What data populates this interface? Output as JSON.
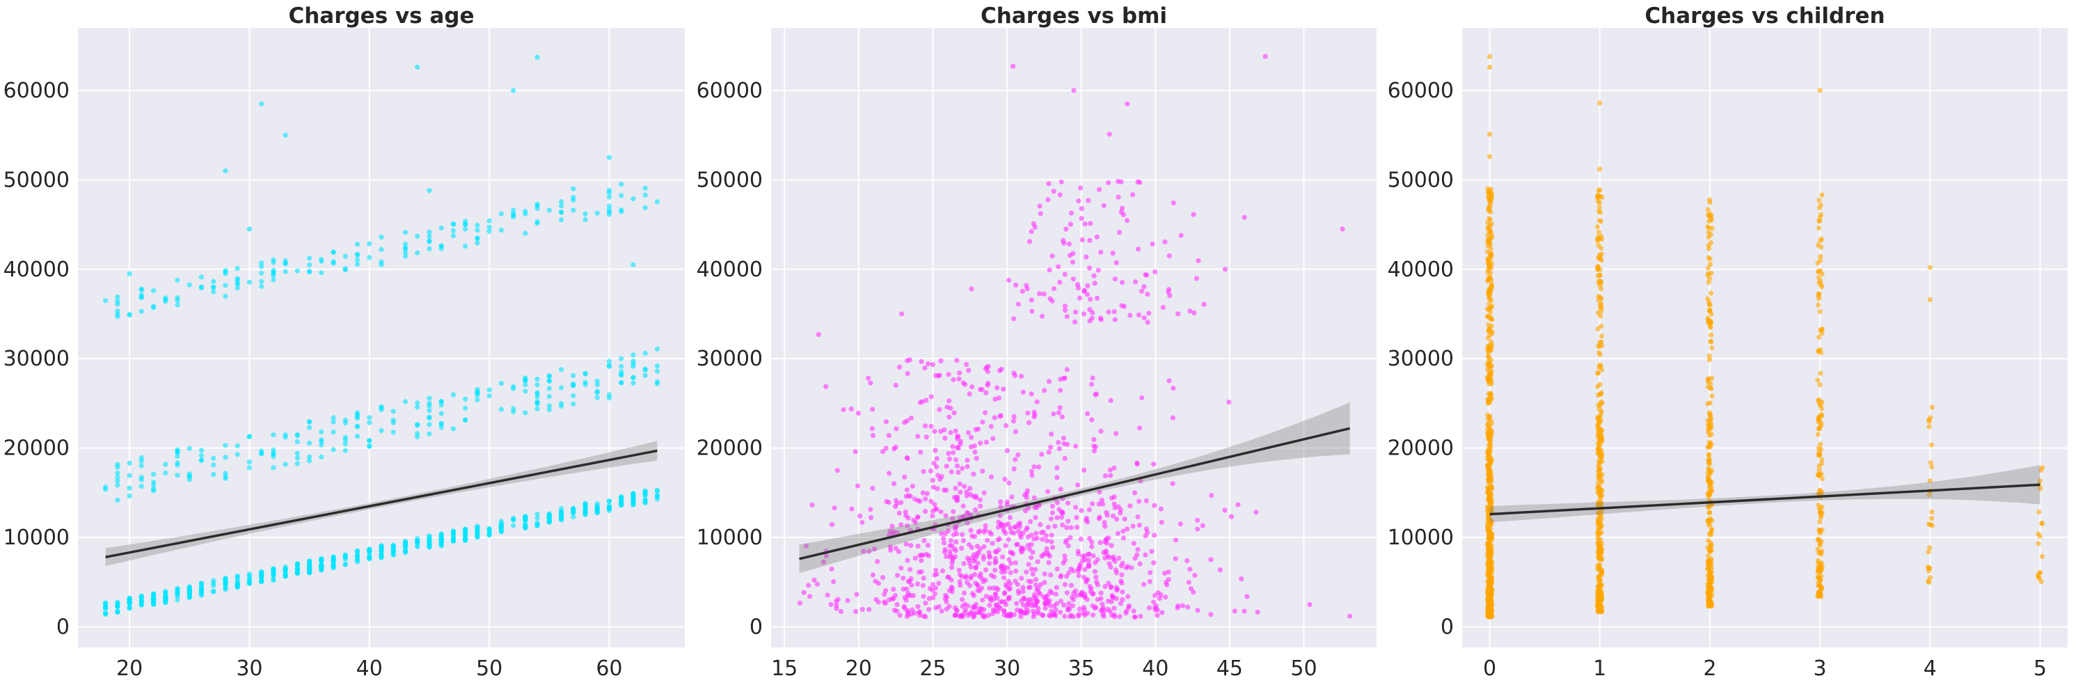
{
  "chart_data": [
    {
      "type": "scatter",
      "title": "Charges vs age",
      "xlabel": "",
      "ylabel": "",
      "xlim": [
        15.7,
        66.3
      ],
      "ylim": [
        -2300,
        67000
      ],
      "xticks": [
        20,
        30,
        40,
        50,
        60
      ],
      "yticks": [
        0,
        10000,
        20000,
        30000,
        40000,
        50000,
        60000
      ],
      "grid": true,
      "point_color": "#00e5ff",
      "point_style": "scatter",
      "jitter_x": 0,
      "clusters": [
        {
          "x_range": [
            18,
            64
          ],
          "y_at_start": 1700,
          "y_at_end": 14500,
          "spread": 1400,
          "count": 600
        },
        {
          "x_range": [
            18,
            64
          ],
          "y_at_start": 15000,
          "y_at_end": 28000,
          "spread": 4500,
          "count": 230
        },
        {
          "x_range": [
            18,
            64
          ],
          "y_at_start": 35000,
          "y_at_end": 48000,
          "spread": 3000,
          "count": 160
        }
      ],
      "outliers": [
        [
          31,
          58500
        ],
        [
          33,
          55000
        ],
        [
          28,
          51000
        ],
        [
          30,
          44500
        ],
        [
          41,
          40500
        ],
        [
          45,
          48800
        ],
        [
          52,
          60000
        ],
        [
          54,
          63700
        ],
        [
          44,
          62600
        ],
        [
          60,
          52500
        ],
        [
          57,
          49000
        ],
        [
          61,
          49500
        ],
        [
          24,
          36000
        ],
        [
          20,
          39500
        ],
        [
          62,
          40500
        ]
      ],
      "regression": {
        "x": [
          18,
          64
        ],
        "y": [
          7800,
          19700
        ],
        "ci_half_width_ends": [
          1000,
          1100
        ],
        "ci_half_width_mid": 350
      }
    },
    {
      "type": "scatter",
      "title": "Charges vs bmi",
      "xlabel": "",
      "ylabel": "",
      "xlim": [
        14.1,
        54.9
      ],
      "ylim": [
        -2300,
        67000
      ],
      "xticks": [
        15,
        20,
        25,
        30,
        35,
        40,
        45,
        50
      ],
      "yticks": [
        0,
        10000,
        20000,
        30000,
        40000,
        50000,
        60000
      ],
      "grid": true,
      "point_color": "#ff33ff",
      "point_style": "scatter",
      "jitter_x": 0,
      "clusters": [
        {
          "x_range": [
            16,
            48
          ],
          "x_center": 30.6,
          "x_sd": 6,
          "y_low": 1100,
          "y_high": 14000,
          "count": 850
        },
        {
          "x_range": [
            17,
            34
          ],
          "x_center": 26,
          "x_sd": 3.5,
          "y_low": 14000,
          "y_high": 30000,
          "count": 200
        },
        {
          "x_range": [
            30,
            47
          ],
          "x_center": 36,
          "x_sd": 3.3,
          "y_low": 34000,
          "y_high": 50000,
          "count": 130
        },
        {
          "x_range": [
            30,
            47
          ],
          "x_center": 35,
          "x_sd": 3.5,
          "y_low": 14000,
          "y_high": 29000,
          "count": 70
        }
      ],
      "outliers": [
        [
          30.4,
          62700
        ],
        [
          47.4,
          63800
        ],
        [
          34.5,
          60000
        ],
        [
          36.9,
          55100
        ],
        [
          38.1,
          58500
        ],
        [
          52.6,
          44500
        ],
        [
          53.1,
          1200
        ],
        [
          50.4,
          2500
        ],
        [
          22.9,
          35000
        ],
        [
          17.3,
          32700
        ],
        [
          27.6,
          37800
        ],
        [
          44.7,
          40000
        ],
        [
          46,
          45800
        ]
      ],
      "regression": {
        "x": [
          16,
          53.1
        ],
        "y": [
          7600,
          22200
        ],
        "ci_half_width_ends": [
          1600,
          2900
        ],
        "ci_half_width_mid": 400
      }
    },
    {
      "type": "scatter",
      "title": "Charges vs children",
      "xlabel": "",
      "ylabel": "",
      "xlim": [
        -0.25,
        5.25
      ],
      "ylim": [
        -2300,
        67000
      ],
      "xticks": [
        0,
        1,
        2,
        3,
        4,
        5
      ],
      "yticks": [
        0,
        10000,
        20000,
        30000,
        40000,
        50000,
        60000
      ],
      "grid": true,
      "point_color": "#ffa500",
      "point_style": "strip",
      "jitter_x": 0.02,
      "clusters": [
        {
          "x": 0,
          "y_low": 1100,
          "y_high": 49000,
          "count": 570,
          "dense_below": 22000
        },
        {
          "x": 1,
          "y_low": 1700,
          "y_high": 49000,
          "count": 320,
          "dense_below": 24000
        },
        {
          "x": 2,
          "y_low": 2300,
          "y_high": 49500,
          "count": 240,
          "dense_below": 24000
        },
        {
          "x": 3,
          "y_low": 3400,
          "y_high": 48500,
          "count": 155,
          "dense_below": 25000
        },
        {
          "x": 4,
          "y_low": 4500,
          "y_high": 25000,
          "count": 25,
          "dense_below": 16000
        },
        {
          "x": 5,
          "y_low": 4700,
          "y_high": 19000,
          "count": 18,
          "dense_below": 12000
        }
      ],
      "outliers": [
        [
          0,
          52600
        ],
        [
          0,
          55100
        ],
        [
          0,
          62600
        ],
        [
          0,
          63800
        ],
        [
          1,
          51200
        ],
        [
          1,
          58600
        ],
        [
          3,
          60000
        ],
        [
          4,
          36600
        ],
        [
          4,
          40200
        ]
      ],
      "regression": {
        "x": [
          0,
          5
        ],
        "y": [
          12600,
          15900
        ],
        "ci_half_width_ends": [
          900,
          2200
        ],
        "ci_half_width_mid": 400
      }
    }
  ]
}
